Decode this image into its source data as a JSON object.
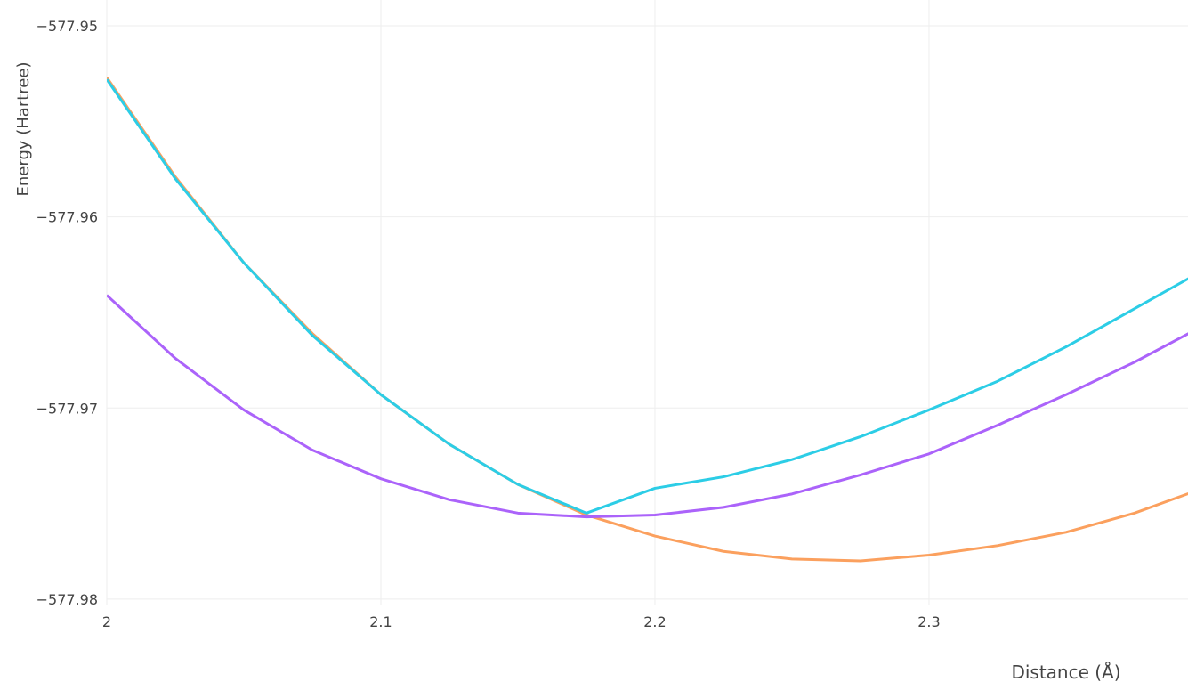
{
  "chart_data": {
    "type": "line",
    "x_label": "Distance (Å)",
    "y_label": "Energy (Hartree)",
    "x": [
      2,
      2.025,
      2.05,
      2.075,
      2.1,
      2.125,
      2.15,
      2.175,
      2.2,
      2.225,
      2.25,
      2.275,
      2.3,
      2.325,
      2.35,
      2.375,
      2.4
    ],
    "series": [
      {
        "color": "#fba05e",
        "values": [
          -577.9527,
          -577.9579,
          -577.9624,
          -577.9661,
          -577.9693,
          -577.9719,
          -577.974,
          -577.9756,
          -577.9767,
          -577.9775,
          -577.9779,
          -577.978,
          -577.9777,
          -577.9772,
          -577.9765,
          -577.9755,
          -577.9742
        ]
      },
      {
        "color": "#2ccde6",
        "values": [
          -577.9528,
          -577.958,
          -577.9624,
          -577.9662,
          -577.9693,
          -577.9719,
          -577.974,
          -577.9755,
          -577.9742,
          -577.9736,
          -577.9727,
          -577.9715,
          -577.9701,
          -577.9686,
          -577.9668,
          -577.9648,
          -577.9628
        ]
      },
      {
        "color": "#ab63fa",
        "values": [
          -577.9641,
          -577.9674,
          -577.9701,
          -577.9722,
          -577.9737,
          -577.9748,
          -577.9755,
          -577.9757,
          -577.9756,
          -577.9752,
          -577.9745,
          -577.9735,
          -577.9724,
          -577.9709,
          -577.9693,
          -577.9676,
          -577.9657
        ]
      }
    ],
    "xlim": [
      2,
      2.3945
    ],
    "ylim": [
      -577.98033,
      -577.94865
    ],
    "xticks": [
      2,
      2.1,
      2.2,
      2.3
    ],
    "yticks": [
      {
        "value": -577.95,
        "label": "−577.95"
      },
      {
        "value": -577.96,
        "label": "−577.96"
      },
      {
        "value": -577.97,
        "label": "−577.97"
      },
      {
        "value": -577.98,
        "label": "−577.98"
      }
    ],
    "grid": true
  }
}
